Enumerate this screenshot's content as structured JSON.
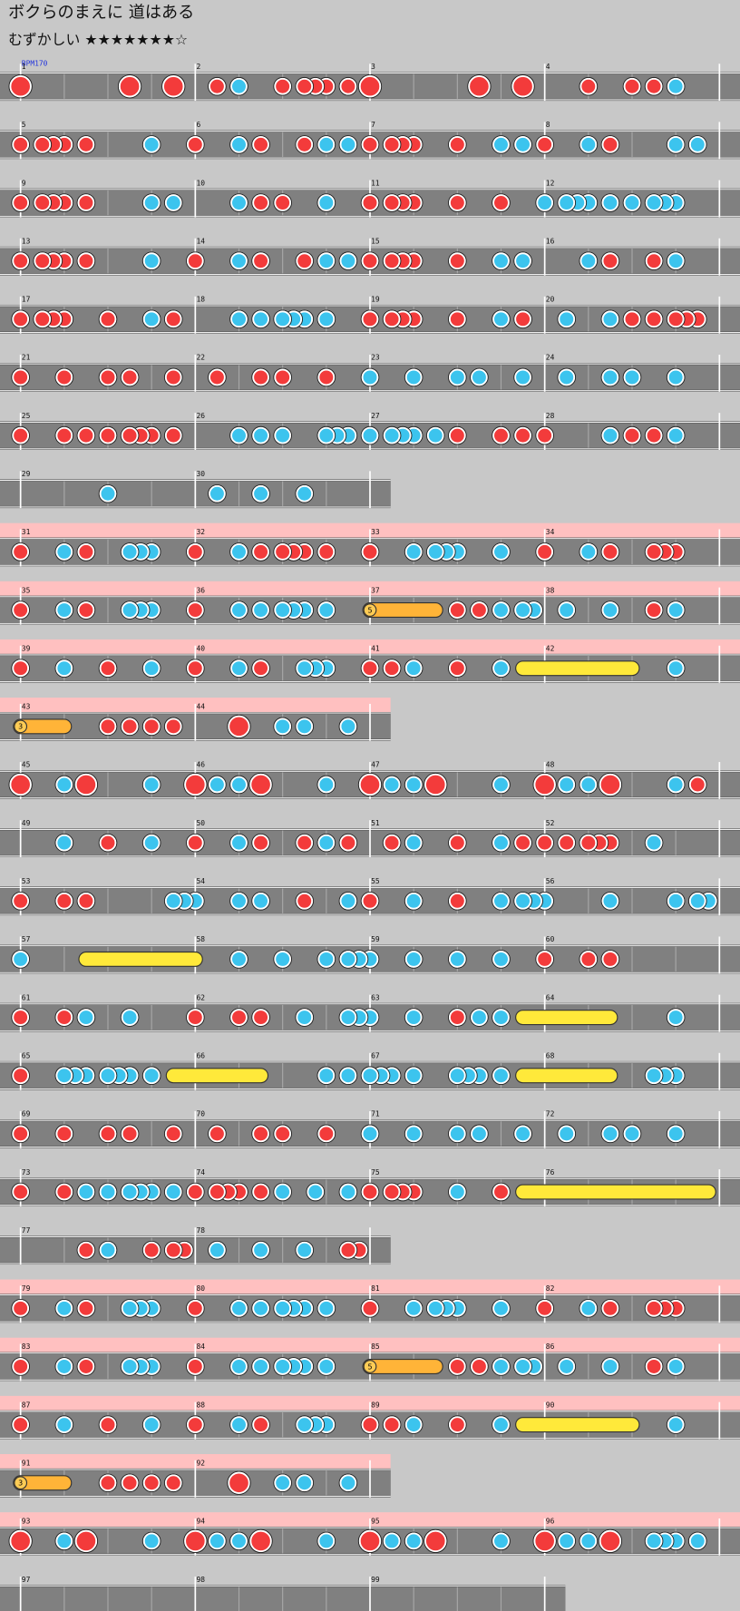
{
  "title": "ボクらのまえに 道はある",
  "difficulty": "むずかしい ★★★★★★★☆",
  "bpm": "BPM170",
  "rows": [
    {
      "gogo": false,
      "measures": [
        {
          "number": "1",
          "notes": "3000000000300030"
        },
        {
          "number": "2",
          "notes": "0010200010111010"
        },
        {
          "number": "3",
          "notes": "3000000000300030"
        },
        {
          "number": "4",
          "notes": "0000100010102000"
        }
      ]
    },
    {
      "gogo": false,
      "measures": [
        {
          "number": "5",
          "notes": "1011101000002000"
        },
        {
          "number": "6",
          "notes": "1000201000102020"
        },
        {
          "number": "7",
          "notes": "1011100010002020"
        },
        {
          "number": "8",
          "notes": "1000201000002020"
        }
      ]
    },
    {
      "gogo": false,
      "measures": [
        {
          "number": "9",
          "notes": "1011101000002020"
        },
        {
          "number": "10",
          "notes": "0000201010002000"
        },
        {
          "number": "11",
          "notes": "1011100010001000"
        },
        {
          "number": "12",
          "notes": "2022202020222000"
        }
      ]
    },
    {
      "gogo": false,
      "measures": [
        {
          "number": "13",
          "notes": "1011101000002000"
        },
        {
          "number": "14",
          "notes": "1000201000102020"
        },
        {
          "number": "15",
          "notes": "1011100010002020"
        },
        {
          "number": "16",
          "notes": "0000201000102000"
        }
      ]
    },
    {
      "gogo": false,
      "measures": [
        {
          "number": "17",
          "notes": "1011100010002010"
        },
        {
          "number": "18",
          "notes": "0000202022202000"
        },
        {
          "number": "19",
          "notes": "1011100010002010"
        },
        {
          "number": "20",
          "notes": "0020002010101110"
        }
      ]
    },
    {
      "gogo": false,
      "measures": [
        {
          "number": "21",
          "notes": "1000100010100010"
        },
        {
          "number": "22",
          "notes": "0010001010001000"
        },
        {
          "number": "23",
          "notes": "2000200020200020"
        },
        {
          "number": "24",
          "notes": "0020002020002000"
        }
      ]
    },
    {
      "gogo": false,
      "measures": [
        {
          "number": "25",
          "notes": "1000101010111010"
        },
        {
          "number": "26",
          "notes": "0000202020002220"
        },
        {
          "number": "27",
          "notes": "2022202010001010"
        },
        {
          "number": "28",
          "notes": "1000002010102000"
        }
      ]
    },
    {
      "gogo": false,
      "measures": [
        {
          "number": "29",
          "notes": "0000000020000000"
        },
        {
          "number": "30",
          "notes": "0020002000200000"
        }
      ]
    },
    {
      "gogo": true,
      "measures": [
        {
          "number": "31",
          "notes": "1000201000222000"
        },
        {
          "number": "32",
          "notes": "1000201011101000"
        },
        {
          "number": "33",
          "notes": "1000202220002000"
        },
        {
          "number": "34",
          "notes": "1000201000111000"
        }
      ]
    },
    {
      "gogo": true,
      "measures": [
        {
          "number": "35",
          "notes": "1000201000222000"
        },
        {
          "number": "36",
          "notes": "1000202022202000"
        },
        {
          "number": "37",
          "notes": "7000008010102022",
          "balloon": "5"
        },
        {
          "number": "38",
          "notes": "0020002000102000"
        }
      ]
    },
    {
      "gogo": true,
      "measures": [
        {
          "number": "39",
          "notes": "1000200010002000"
        },
        {
          "number": "40",
          "notes": "1000201000222000"
        },
        {
          "number": "41",
          "notes": "1010200010002050"
        },
        {
          "number": "42",
          "notes": "0000000080002000"
        }
      ]
    },
    {
      "gogo": true,
      "measures": [
        {
          "number": "43",
          "notes": "7000800010101010",
          "balloon": "3"
        },
        {
          "number": "44",
          "notes": "0000300020200020"
        }
      ]
    },
    {
      "gogo": false,
      "measures": [
        {
          "number": "45",
          "notes": "3000203000002000"
        },
        {
          "number": "46",
          "notes": "3020203000002000"
        },
        {
          "number": "47",
          "notes": "3020203000002000"
        },
        {
          "number": "48",
          "notes": "3020203000002010"
        }
      ]
    },
    {
      "gogo": false,
      "measures": [
        {
          "number": "49",
          "notes": "0000200010002000"
        },
        {
          "number": "50",
          "notes": "1000201000102010"
        },
        {
          "number": "51",
          "notes": "0010200010002010"
        },
        {
          "number": "52",
          "notes": "1010111000200000"
        }
      ]
    },
    {
      "gogo": false,
      "measures": [
        {
          "number": "53",
          "notes": "1000101000000022"
        },
        {
          "number": "54",
          "notes": "2000202000100020"
        },
        {
          "number": "55",
          "notes": "1000200010002022"
        },
        {
          "number": "56",
          "notes": "2000002000002022"
        }
      ]
    },
    {
      "gogo": false,
      "measures": [
        {
          "number": "57",
          "notes": "2000005000000000"
        },
        {
          "number": "58",
          "notes": "8000200020002022"
        },
        {
          "number": "59",
          "notes": "2000200020002000"
        },
        {
          "number": "60",
          "notes": "1000101000000000"
        }
      ]
    },
    {
      "gogo": false,
      "measures": [
        {
          "number": "61",
          "notes": "1000102000200000"
        },
        {
          "number": "62",
          "notes": "1000101000200022"
        },
        {
          "number": "63",
          "notes": "2000200010202050"
        },
        {
          "number": "64",
          "notes": "0000008000002000"
        }
      ]
    },
    {
      "gogo": false,
      "measures": [
        {
          "number": "65",
          "notes": "1000222022202050"
        },
        {
          "number": "66",
          "notes": "0000008000002020"
        },
        {
          "number": "67",
          "notes": "2220200022202050"
        },
        {
          "number": "68",
          "notes": "0000008000222000"
        }
      ]
    },
    {
      "gogo": false,
      "measures": [
        {
          "number": "69",
          "notes": "1000100010100010"
        },
        {
          "number": "70",
          "notes": "0010001010001000"
        },
        {
          "number": "71",
          "notes": "2000200020200020"
        },
        {
          "number": "72",
          "notes": "0020002020002000"
        }
      ]
    },
    {
      "gogo": false,
      "measures": [
        {
          "number": "73",
          "notes": "1000102020222020"
        },
        {
          "number": "74",
          "notes": "1011101020020020"
        },
        {
          "number": "75",
          "notes": "1011100020001050"
        },
        {
          "number": "76",
          "notes": "0000000000000008"
        }
      ]
    },
    {
      "gogo": false,
      "measures": [
        {
          "number": "77",
          "notes": "0000001020001011"
        },
        {
          "number": "78",
          "notes": "0020002000200011"
        }
      ]
    },
    {
      "gogo": true,
      "measures": [
        {
          "number": "79",
          "notes": "1000201000222000"
        },
        {
          "number": "80",
          "notes": "1000202022202000"
        },
        {
          "number": "81",
          "notes": "1000202220002000"
        },
        {
          "number": "82",
          "notes": "1000201000111000"
        }
      ]
    },
    {
      "gogo": true,
      "measures": [
        {
          "number": "83",
          "notes": "1000201000222000"
        },
        {
          "number": "84",
          "notes": "1000202022202000"
        },
        {
          "number": "85",
          "notes": "7000008010102022",
          "balloon": "5"
        },
        {
          "number": "86",
          "notes": "0020002000102000"
        }
      ]
    },
    {
      "gogo": true,
      "measures": [
        {
          "number": "87",
          "notes": "1000200010002000"
        },
        {
          "number": "88",
          "notes": "1000201000222000"
        },
        {
          "number": "89",
          "notes": "1010200010002050"
        },
        {
          "number": "90",
          "notes": "0000000080002000"
        }
      ]
    },
    {
      "gogo": true,
      "measures": [
        {
          "number": "91",
          "notes": "7000800010101010",
          "balloon": "3"
        },
        {
          "number": "92",
          "notes": "0000300020200020"
        }
      ]
    },
    {
      "gogo": true,
      "measures": [
        {
          "number": "93",
          "notes": "3000203000002000"
        },
        {
          "number": "94",
          "notes": "3020203000002000"
        },
        {
          "number": "95",
          "notes": "3020203000002000"
        },
        {
          "number": "96",
          "notes": "3020203000222020"
        }
      ]
    },
    {
      "gogo": false,
      "measures": [
        {
          "number": "97",
          "notes": "0000000000000000"
        },
        {
          "number": "98",
          "notes": "0000000000000000"
        },
        {
          "number": "99",
          "notes": "0000000000000000"
        }
      ]
    }
  ]
}
